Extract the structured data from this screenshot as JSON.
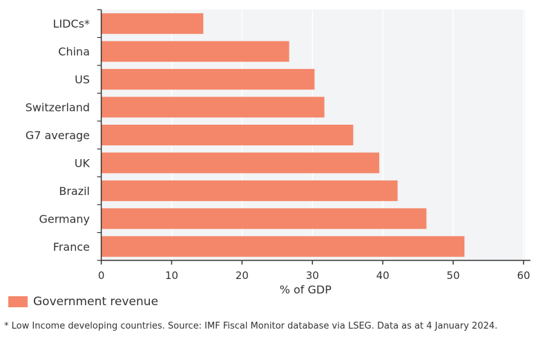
{
  "chart_data": {
    "type": "bar",
    "orientation": "horizontal",
    "categories": [
      "LIDCs*",
      "China",
      "US",
      "Switzerland",
      "G7 average",
      "UK",
      "Brazil",
      "Germany",
      "France"
    ],
    "series": [
      {
        "name": "Government revenue",
        "values": [
          14.5,
          26.7,
          30.3,
          31.7,
          35.8,
          39.5,
          42.1,
          46.2,
          51.6
        ],
        "color": "#f4876a"
      }
    ],
    "xlabel": "% of GDP",
    "ylabel": "",
    "xlim": [
      0,
      60
    ],
    "xticks": [
      "0",
      "10",
      "20",
      "30",
      "40",
      "50",
      "60"
    ],
    "grid": true,
    "legend_position": "bottom-left",
    "plot_background": "#f3f4f6"
  },
  "footnote": "* Low Income developing countries. Source: IMF Fiscal Monitor database via LSEG. Data as at 4 January 2024."
}
